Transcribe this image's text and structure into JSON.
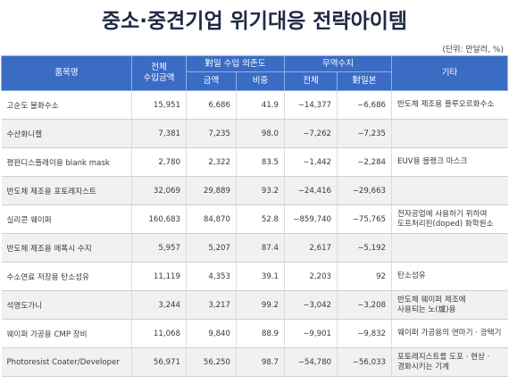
{
  "title": "중소·중견기업 위기대응 전략아이템",
  "unit_note": "(단위: 만달러, %)",
  "headers": {
    "product": "품목명",
    "total_import_line1": "전체",
    "total_import_line2": "수입금액",
    "dependence_group": "對일 수입 의존도",
    "dep_amount": "금액",
    "dep_ratio": "비중",
    "trade_group": "무역수지",
    "trade_total": "전체",
    "trade_japan": "對일본",
    "other": "기타"
  },
  "rows": [
    {
      "name": "고순도 불화수소",
      "total": "15,951",
      "amount": "6,686",
      "ratio": "41.9",
      "trade_total": "−14,377",
      "trade_japan": "−6,686",
      "note": [
        "반도체 제조용 플루오르화수소"
      ]
    },
    {
      "name": "수산화니켈",
      "total": "7,381",
      "amount": "7,235",
      "ratio": "98.0",
      "trade_total": "−7,262",
      "trade_japan": "−7,235",
      "note": []
    },
    {
      "name": "평판디스플레이용 blank mask",
      "total": "2,780",
      "amount": "2,322",
      "ratio": "83.5",
      "trade_total": "−1,442",
      "trade_japan": "−2,284",
      "note": [
        "EUV용 블랭크 마스크"
      ]
    },
    {
      "name": "반도체 제조용 포토레지스트",
      "total": "32,069",
      "amount": "29,889",
      "ratio": "93.2",
      "trade_total": "−24,416",
      "trade_japan": "−29,663",
      "note": []
    },
    {
      "name": "실리콘 웨이퍼",
      "total": "160,683",
      "amount": "84,870",
      "ratio": "52.8",
      "trade_total": "−859,740",
      "trade_japan": "−75,765",
      "note": [
        "전자공업에 사용하기 위하여",
        "도프처리된(doped) 화학원소"
      ]
    },
    {
      "name": "반도체 제조용 에폭시 수지",
      "total": "5,957",
      "amount": "5,207",
      "ratio": "87.4",
      "trade_total": "2,617",
      "trade_japan": "−5,192",
      "note": []
    },
    {
      "name": "수소연료 저장용 탄소섬유",
      "total": "11,119",
      "amount": "4,353",
      "ratio": "39.1",
      "trade_total": "2,203",
      "trade_japan": "92",
      "note": [
        "탄소섬유"
      ]
    },
    {
      "name": "석영도가니",
      "total": "3,244",
      "amount": "3,217",
      "ratio": "99.2",
      "trade_total": "−3,042",
      "trade_japan": "−3,208",
      "note": [
        "반도체 웨이퍼 제조에",
        "사용되는 노(爐)용"
      ]
    },
    {
      "name": "웨이퍼 가공용 CMP 장비",
      "total": "11,068",
      "amount": "9,840",
      "ratio": "88.9",
      "trade_total": "−9,901",
      "trade_japan": "−9,832",
      "note": [
        "웨이퍼 가공용의 연마기 · 광택기"
      ]
    },
    {
      "name": "Photoresist Coater/Developer",
      "total": "56,971",
      "amount": "56,250",
      "ratio": "98.7",
      "trade_total": "−54,780",
      "trade_japan": "−56,033",
      "note": [
        "포토레지스트를 도포 · 현상 ·",
        "경화시키는 기계"
      ]
    }
  ]
}
